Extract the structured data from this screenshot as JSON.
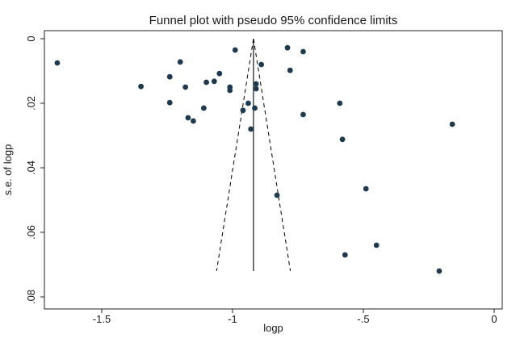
{
  "chart_data": {
    "type": "scatter",
    "title": "Funnel plot with pseudo 95% confidence limits",
    "xlabel": "logp",
    "ylabel": "s.e. of logp",
    "xlim": [
      -1.7,
      0.0
    ],
    "ylim": [
      0.0,
      0.08
    ],
    "y_inverted": true,
    "x_ticks": [
      -1.5,
      -1,
      -0.5,
      0
    ],
    "x_tick_labels": [
      "-1.5",
      "-1",
      "-.5",
      "0"
    ],
    "y_ticks": [
      0,
      0.02,
      0.04,
      0.06,
      0.08
    ],
    "y_tick_labels": [
      "0",
      ".02",
      ".04",
      ".06",
      ".08"
    ],
    "grid": false,
    "pooled_estimate": -0.92,
    "funnel_se_max": 0.072,
    "series": [
      {
        "points": [
          [
            -1.67,
            0.0075
          ],
          [
            -1.35,
            0.0148
          ],
          [
            -1.24,
            0.0118
          ],
          [
            -1.24,
            0.0198
          ],
          [
            -1.2,
            0.0072
          ],
          [
            -1.18,
            0.015
          ],
          [
            -1.17,
            0.0245
          ],
          [
            -1.15,
            0.0255
          ],
          [
            -1.11,
            0.0215
          ],
          [
            -1.1,
            0.0135
          ],
          [
            -1.07,
            0.0132
          ],
          [
            -1.05,
            0.0108
          ],
          [
            -1.01,
            0.015
          ],
          [
            -1.01,
            0.016
          ],
          [
            -0.99,
            0.0035
          ],
          [
            -0.96,
            0.0222
          ],
          [
            -0.94,
            0.02
          ],
          [
            -0.93,
            0.028
          ],
          [
            -0.915,
            0.0215
          ],
          [
            -0.91,
            0.014
          ],
          [
            -0.91,
            0.0155
          ],
          [
            -0.89,
            0.008
          ],
          [
            -0.83,
            0.0485
          ],
          [
            -0.79,
            0.0028
          ],
          [
            -0.78,
            0.0098
          ],
          [
            -0.73,
            0.004
          ],
          [
            -0.73,
            0.0235
          ],
          [
            -0.59,
            0.02
          ],
          [
            -0.58,
            0.0312
          ],
          [
            -0.57,
            0.067
          ],
          [
            -0.49,
            0.0465
          ],
          [
            -0.45,
            0.064
          ],
          [
            -0.21,
            0.072
          ],
          [
            -0.16,
            0.0265
          ]
        ]
      }
    ]
  },
  "colors": {
    "marker": "#1f3a4f",
    "axis": "#222222",
    "funnel": "#000000"
  }
}
